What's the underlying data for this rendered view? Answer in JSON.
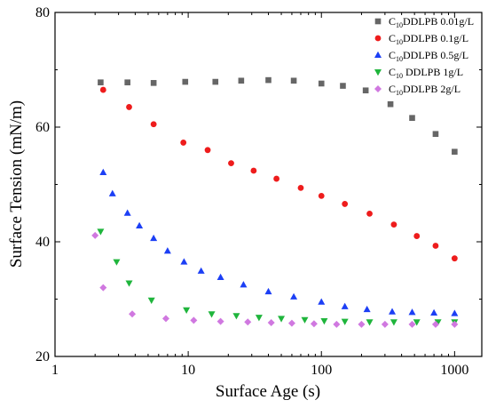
{
  "chart_data": {
    "type": "scatter",
    "title": "",
    "xlabel": "Surface Age (s)",
    "ylabel": "Surface Tension (mN/m)",
    "xscale": "log",
    "xlim": [
      1,
      1600
    ],
    "ylim": [
      20,
      80
    ],
    "x_ticks": [
      1,
      10,
      100,
      1000
    ],
    "x_tick_labels": [
      "1",
      "10",
      "100",
      "1000"
    ],
    "y_ticks": [
      20,
      40,
      60,
      80
    ],
    "y_tick_labels": [
      "20",
      "40",
      "60",
      "80"
    ],
    "grid": false,
    "legend_position": "top-right",
    "series": [
      {
        "name_parts": [
          "C",
          "10",
          "DDLPB 0.01g/L"
        ],
        "marker": "square",
        "color": "#666666",
        "x": [
          2.2,
          3.5,
          5.5,
          9.5,
          16,
          25,
          40,
          62,
          100,
          145,
          215,
          330,
          480,
          720,
          1000
        ],
        "y": [
          67.8,
          67.8,
          67.7,
          67.9,
          67.9,
          68.1,
          68.2,
          68.1,
          67.6,
          67.2,
          66.4,
          64.0,
          61.6,
          58.8,
          55.7
        ]
      },
      {
        "name_parts": [
          "C",
          "10",
          "DDLPB 0.1g/L"
        ],
        "marker": "circle",
        "color": "#ee1c1c",
        "x": [
          2.3,
          3.6,
          5.5,
          9.2,
          14,
          21,
          31,
          46,
          70,
          100,
          150,
          230,
          350,
          520,
          720,
          1000
        ],
        "y": [
          66.5,
          63.5,
          60.5,
          57.3,
          56.0,
          53.7,
          52.4,
          51.0,
          49.4,
          48.0,
          46.6,
          44.9,
          43.0,
          41.0,
          39.3,
          37.1
        ]
      },
      {
        "name_parts": [
          "C",
          "10",
          "DDLPB 0.5g/L"
        ],
        "marker": "triangle-up",
        "color": "#1c3ff5",
        "x": [
          2.3,
          2.7,
          3.5,
          4.3,
          5.5,
          7.0,
          9.3,
          12.5,
          17.5,
          26,
          40,
          62,
          100,
          150,
          220,
          340,
          480,
          700,
          1000
        ],
        "y": [
          52.1,
          48.4,
          45.0,
          42.8,
          40.6,
          38.4,
          36.5,
          34.9,
          33.8,
          32.5,
          31.3,
          30.4,
          29.5,
          28.7,
          28.2,
          27.8,
          27.7,
          27.6,
          27.5
        ]
      },
      {
        "name_parts": [
          "C",
          "10",
          " DDLPB 1g/L"
        ],
        "marker": "triangle-down",
        "color": "#1fb53c",
        "x": [
          2.2,
          2.9,
          3.6,
          5.3,
          9.7,
          15,
          23,
          34,
          50,
          75,
          105,
          150,
          230,
          350,
          520,
          750,
          1000
        ],
        "y": [
          41.8,
          36.5,
          32.8,
          29.8,
          28.1,
          27.4,
          27.1,
          26.8,
          26.6,
          26.4,
          26.2,
          26.1,
          26.0,
          26.0,
          26.0,
          26.0,
          26.0
        ]
      },
      {
        "name_parts": [
          "C",
          "10",
          "DDLPB 2g/L"
        ],
        "marker": "diamond",
        "color": "#d078e0",
        "x": [
          2.0,
          2.3,
          3.8,
          6.8,
          11,
          17.5,
          28,
          42,
          60,
          88,
          130,
          200,
          300,
          480,
          720,
          1000
        ],
        "y": [
          41.1,
          32.0,
          27.4,
          26.6,
          26.3,
          26.1,
          26.0,
          25.9,
          25.8,
          25.7,
          25.6,
          25.6,
          25.6,
          25.6,
          25.6,
          25.6
        ]
      }
    ]
  }
}
